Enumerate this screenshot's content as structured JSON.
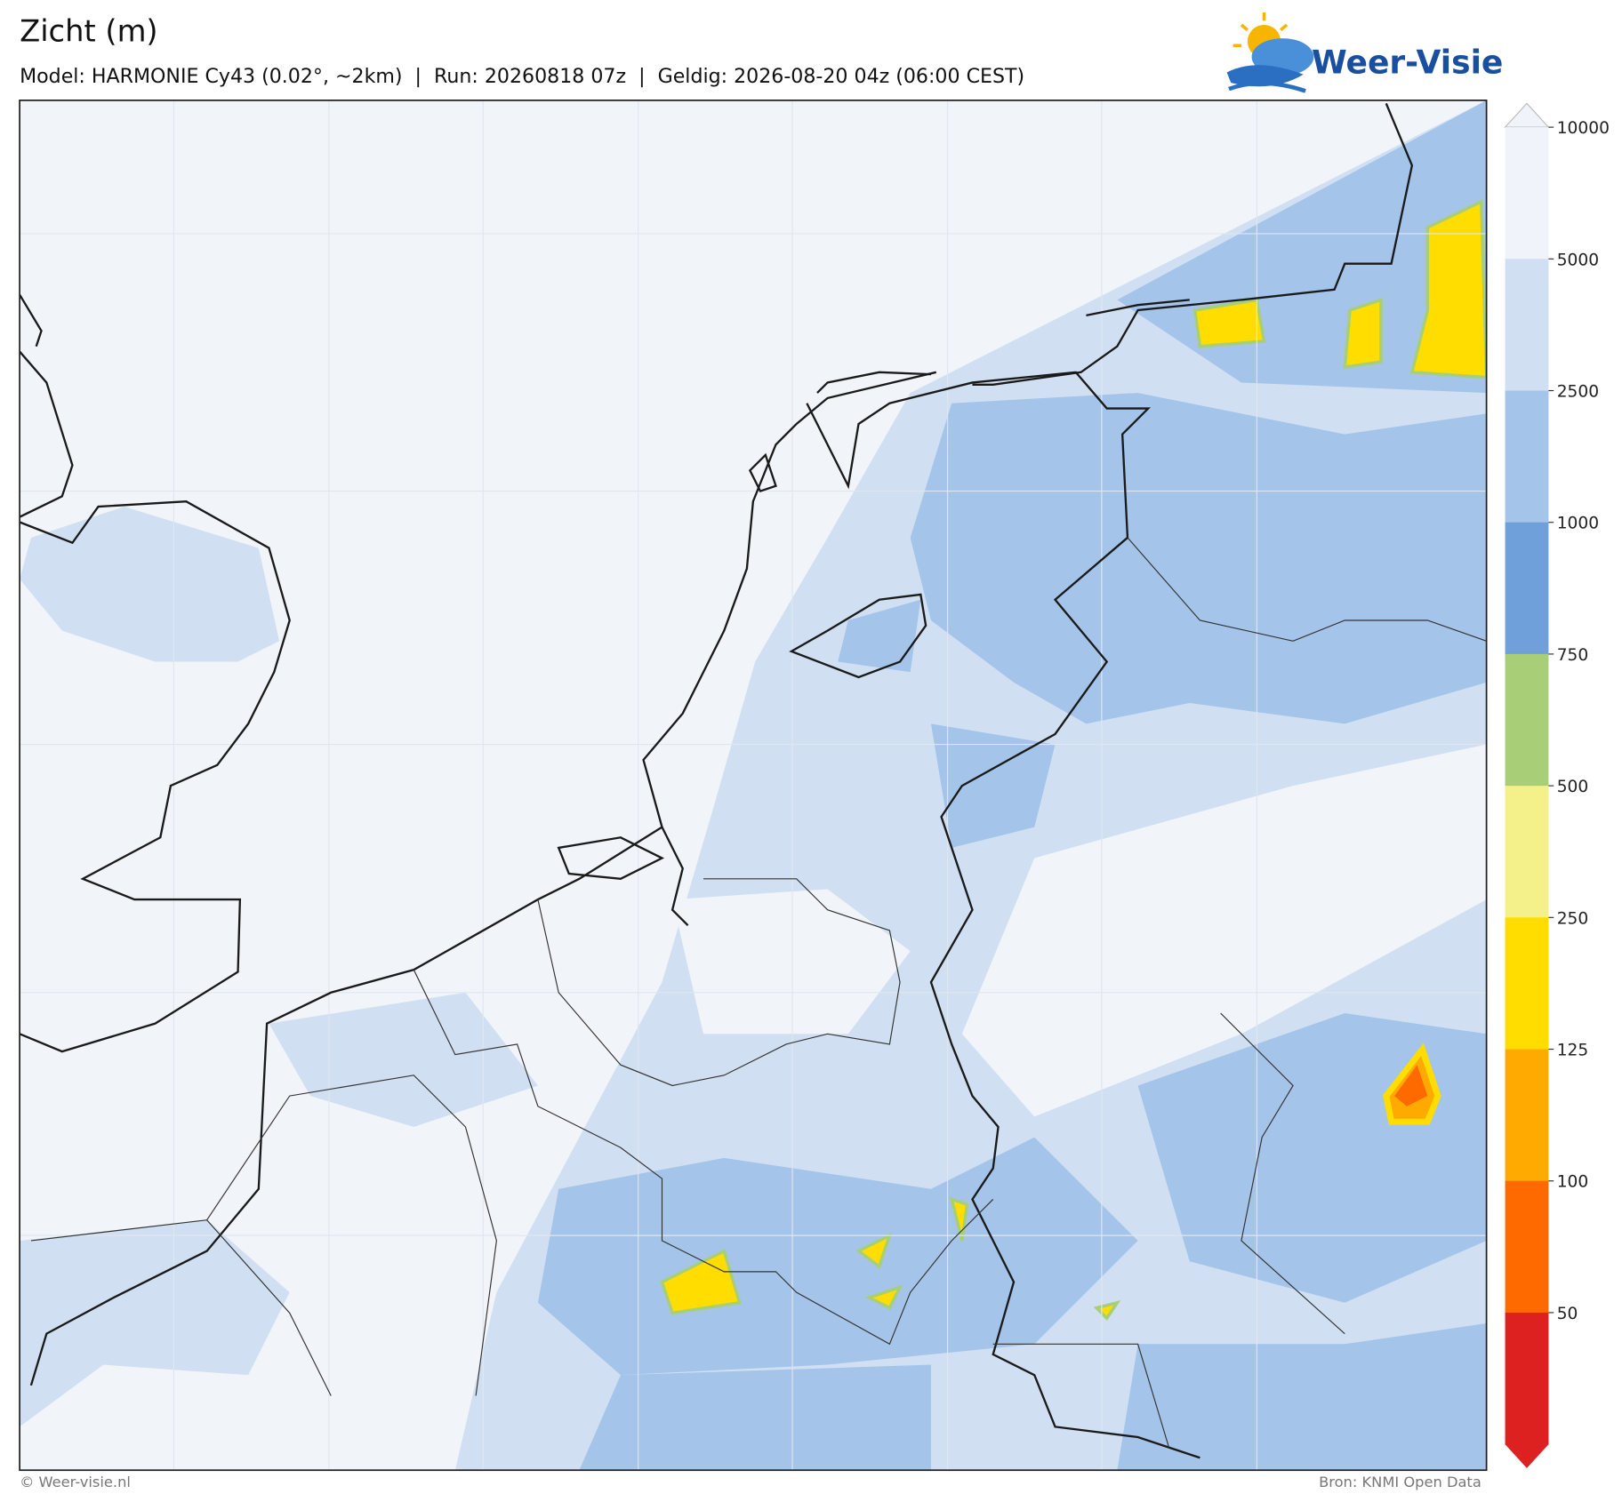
{
  "header": {
    "title": "Zicht (m)",
    "subtitle": "Model: HARMONIE Cy43 (0.02°, ~2km)  |  Run: 20260818 07z  |  Geldig: 2026-08-20 04z (06:00 CEST)",
    "logo": "Weer-Visie"
  },
  "colorbar": {
    "ticks": [
      "10000",
      "5000",
      "2500",
      "1000",
      "750",
      "500",
      "250",
      "125",
      "100",
      "50"
    ],
    "colors": [
      "#f0f4fa",
      "#d0e0f2",
      "#a4c4ea",
      "#6fa0da",
      "#a8cf78",
      "#f4f08a",
      "#ffdd00",
      "#ffaa00",
      "#ff6a00",
      "#dd2020"
    ]
  },
  "footer": {
    "left": "© Weer-visie.nl",
    "right": "Bron: KNMI Open Data"
  }
}
